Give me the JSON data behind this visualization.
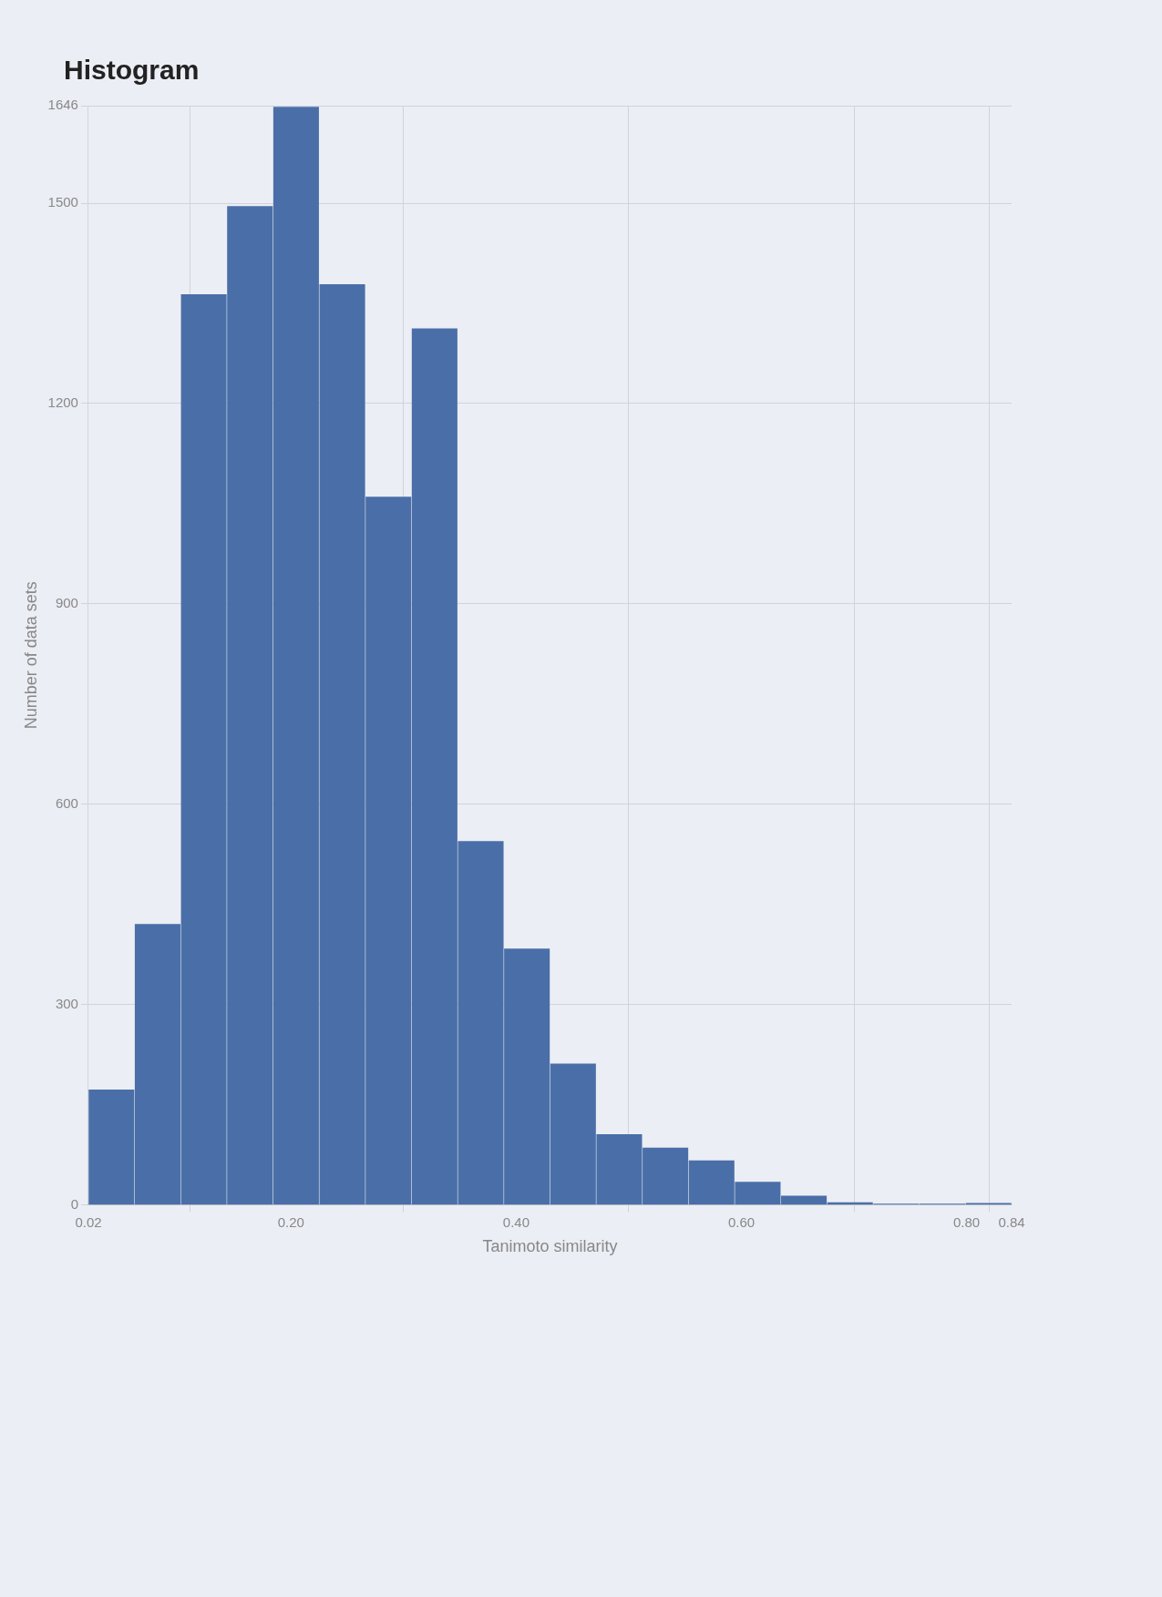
{
  "chart_data": {
    "type": "histogram",
    "title": "Histogram",
    "xlabel": "Tanimoto similarity",
    "ylabel": "Number of data sets",
    "bins": [
      0.02,
      0.061,
      0.102,
      0.143,
      0.184,
      0.225,
      0.266,
      0.307,
      0.348,
      0.389,
      0.43,
      0.471,
      0.512,
      0.553,
      0.594,
      0.635,
      0.676,
      0.717,
      0.758,
      0.799,
      0.84
    ],
    "values": [
      172,
      420,
      1363,
      1495,
      1644,
      1378,
      1060,
      1312,
      544,
      383,
      211,
      105,
      85,
      66,
      34,
      13,
      3,
      1,
      1,
      2
    ],
    "color": "#4a6fa8",
    "xlim": [
      0.02,
      0.84
    ],
    "xticks": [
      {
        "value": 0.02,
        "label": "0.02"
      },
      {
        "value": 0.2,
        "label": "0.20"
      },
      {
        "value": 0.4,
        "label": "0.40"
      },
      {
        "value": 0.6,
        "label": "0.60"
      },
      {
        "value": 0.8,
        "label": "0.80"
      },
      {
        "value": 0.84,
        "label": "0.84"
      }
    ],
    "ylim": [
      0,
      1646
    ],
    "yticks": [
      0,
      300,
      600,
      900,
      1200,
      1500,
      1646
    ],
    "grid": true
  }
}
